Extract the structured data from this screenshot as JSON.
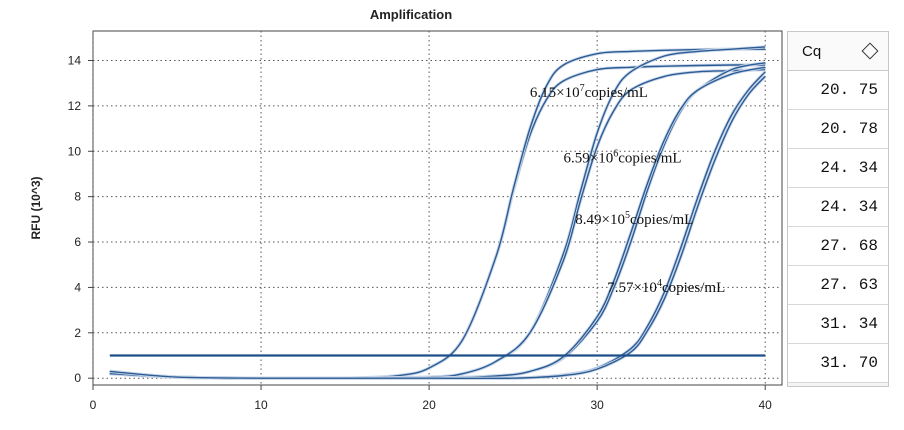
{
  "chart_data": {
    "type": "line",
    "title": "Amplification",
    "ylabel": "RFU (10^3)",
    "xlabel": "",
    "xlim": [
      0,
      41
    ],
    "ylim": [
      -0.3,
      15.3
    ],
    "xticks": [
      0,
      10,
      20,
      30,
      40
    ],
    "yticks": [
      0,
      2,
      4,
      6,
      8,
      10,
      12,
      14
    ],
    "grid": true,
    "threshold": 1.0,
    "line_color": "#2d5b94",
    "series": [
      {
        "cq": 20.75,
        "plateau": 13.8,
        "x": [
          1,
          5,
          10,
          15,
          18,
          20,
          22,
          24,
          25,
          26,
          27,
          28,
          30,
          32,
          34,
          36,
          38,
          40
        ],
        "values": [
          0.25,
          0.05,
          0,
          0,
          0.1,
          0.45,
          1.7,
          5.4,
          8.2,
          10.7,
          12.3,
          13.1,
          13.6,
          13.7,
          13.75,
          13.78,
          13.8,
          13.8
        ]
      },
      {
        "cq": 20.78,
        "plateau": 14.5,
        "x": [
          1,
          5,
          10,
          15,
          18,
          20,
          22,
          24,
          25,
          26,
          27,
          28,
          30,
          32,
          34,
          36,
          38,
          40
        ],
        "values": [
          0.2,
          0.05,
          0,
          0,
          0.1,
          0.45,
          1.7,
          5.4,
          8.3,
          11.0,
          12.9,
          13.8,
          14.3,
          14.4,
          14.45,
          14.48,
          14.5,
          14.5
        ]
      },
      {
        "cq": 24.34,
        "plateau": 14.6,
        "x": [
          1,
          5,
          10,
          15,
          20,
          22,
          24,
          26,
          28,
          29,
          30,
          31,
          32,
          34,
          36,
          38,
          40
        ],
        "values": [
          0.2,
          0.05,
          0,
          0,
          0.05,
          0.2,
          0.75,
          2.0,
          5.5,
          8.2,
          10.8,
          12.6,
          13.5,
          14.2,
          14.4,
          14.5,
          14.6
        ]
      },
      {
        "cq": 24.34,
        "plateau": 13.6,
        "x": [
          1,
          5,
          10,
          15,
          20,
          22,
          24,
          26,
          28,
          29,
          30,
          31,
          32,
          34,
          36,
          38,
          40
        ],
        "values": [
          0.3,
          0.05,
          0,
          0,
          0.05,
          0.2,
          0.75,
          2.0,
          5.2,
          7.8,
          10.2,
          11.8,
          12.7,
          13.3,
          13.5,
          13.55,
          13.6
        ]
      },
      {
        "cq": 27.68,
        "plateau": 13.9,
        "x": [
          1,
          5,
          10,
          15,
          20,
          24,
          26,
          28,
          30,
          31,
          32,
          33,
          34,
          35,
          36,
          38,
          40
        ],
        "values": [
          0.2,
          0.05,
          0,
          0,
          0,
          0.1,
          0.3,
          0.9,
          2.5,
          4.0,
          6.0,
          8.3,
          10.3,
          11.8,
          12.7,
          13.6,
          13.9
        ]
      },
      {
        "cq": 27.63,
        "plateau": 13.7,
        "x": [
          1,
          5,
          10,
          15,
          20,
          24,
          26,
          28,
          30,
          31,
          32,
          33,
          34,
          35,
          36,
          38,
          40
        ],
        "values": [
          0.3,
          0.05,
          0,
          0,
          0,
          0.1,
          0.3,
          0.95,
          2.7,
          4.3,
          6.4,
          8.6,
          10.5,
          11.9,
          12.7,
          13.4,
          13.7
        ]
      },
      {
        "cq": 31.34,
        "plateau": 13.5,
        "x": [
          1,
          5,
          10,
          15,
          20,
          25,
          28,
          30,
          32,
          33,
          34,
          35,
          36,
          37,
          38,
          39,
          40
        ],
        "values": [
          0.2,
          0.05,
          0,
          0,
          0,
          0,
          0.15,
          0.45,
          1.3,
          2.3,
          3.8,
          5.8,
          8.0,
          10.0,
          11.6,
          12.7,
          13.5
        ]
      },
      {
        "cq": 31.7,
        "plateau": 13.3,
        "x": [
          1,
          5,
          10,
          15,
          20,
          25,
          28,
          30,
          32,
          33,
          34,
          35,
          36,
          37,
          38,
          39,
          40
        ],
        "values": [
          0.3,
          0.05,
          0,
          0,
          0,
          0,
          0.12,
          0.4,
          1.15,
          2.1,
          3.5,
          5.4,
          7.6,
          9.6,
          11.3,
          12.5,
          13.3
        ]
      }
    ],
    "annotations": [
      {
        "base": "6.15×10",
        "sup": "7",
        "unit": "copies/mL",
        "x": 26.0,
        "y": 12.4
      },
      {
        "base": "6.59×10",
        "sup": "6",
        "unit": "copies/mL",
        "x": 28.0,
        "y": 9.5
      },
      {
        "base": "8.49×10",
        "sup": "5",
        "unit": "copies/mL",
        "x": 28.7,
        "y": 6.8
      },
      {
        "base": "7.57×10",
        "sup": "4",
        "unit": "copies/mL",
        "x": 30.6,
        "y": 3.8
      }
    ]
  },
  "cq_table": {
    "header": "Cq",
    "sort_icon": "sort-diamond-icon",
    "values": [
      "20. 75",
      "20. 78",
      "24. 34",
      "24. 34",
      "27. 68",
      "27. 63",
      "31. 34",
      "31. 70"
    ]
  }
}
